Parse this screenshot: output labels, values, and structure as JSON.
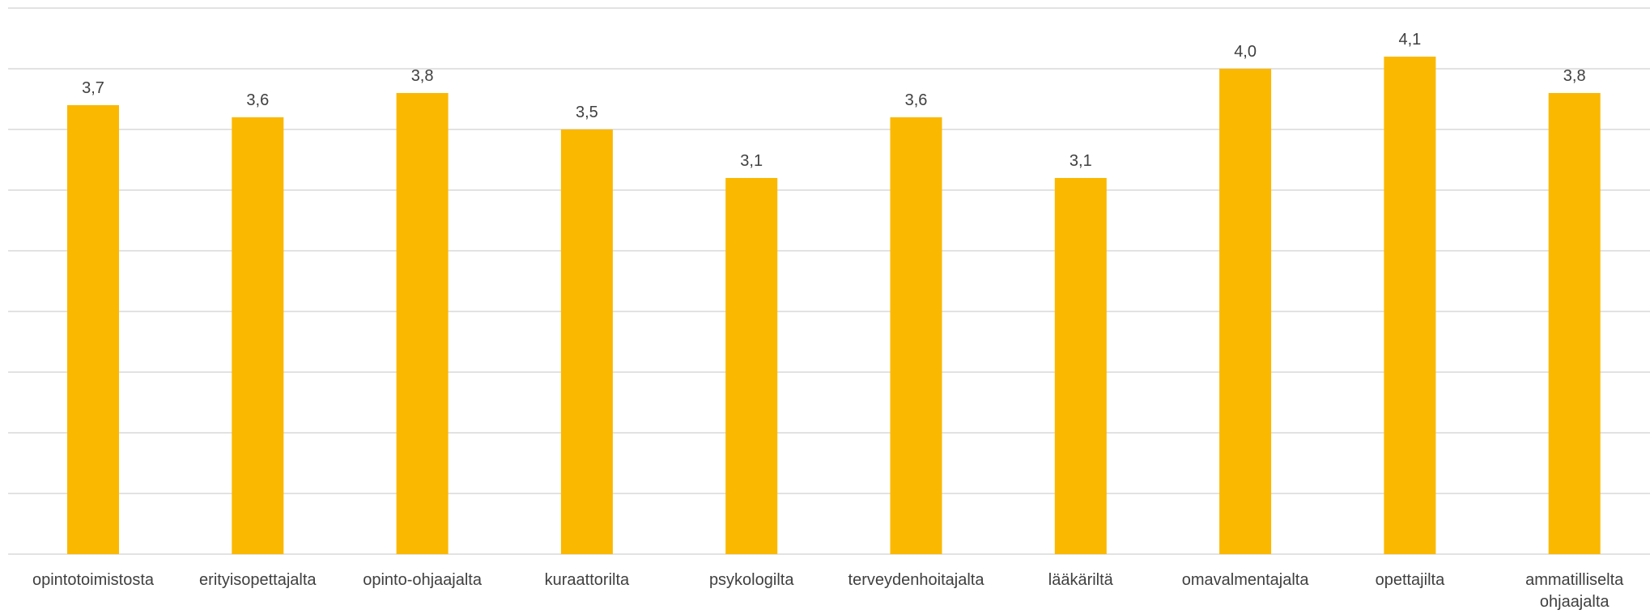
{
  "chart_data": {
    "type": "bar",
    "categories": [
      "opintotoimistosta",
      "erityisopettajalta",
      "opinto-ohjaajalta",
      "kuraattorilta",
      "psykologilta",
      "terveydenhoitajalta",
      "lääkäriltä",
      "omavalmentajalta",
      "opettajilta",
      "ammatilliselta ohjaajalta"
    ],
    "category_lines": [
      [
        "opintotoimistosta"
      ],
      [
        "erityisopettajalta"
      ],
      [
        "opinto-ohjaajalta"
      ],
      [
        "kuraattorilta"
      ],
      [
        "psykologilta"
      ],
      [
        "terveydenhoitajalta"
      ],
      [
        "lääkäriltä"
      ],
      [
        "omavalmentajalta"
      ],
      [
        "opettajilta"
      ],
      [
        "ammatilliselta",
        "ohjaajalta"
      ]
    ],
    "values": [
      3.7,
      3.6,
      3.8,
      3.5,
      3.1,
      3.6,
      3.1,
      4.0,
      4.1,
      3.8
    ],
    "value_labels": [
      "3,7",
      "3,6",
      "3,8",
      "3,5",
      "3,1",
      "3,6",
      "3,1",
      "4,0",
      "4,1",
      "3,8"
    ],
    "ylim": [
      0,
      4.5
    ],
    "grid": true,
    "legend": "none",
    "bar_color": "#FBB800",
    "grid_color": "#D9D9D9",
    "text_color": "#404040"
  }
}
